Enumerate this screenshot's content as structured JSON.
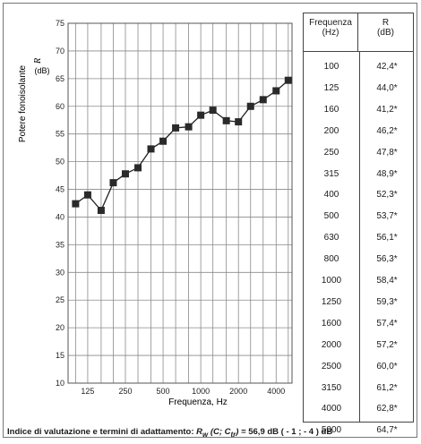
{
  "chart_data": {
    "type": "line",
    "xlabel": "Frequenza, Hz",
    "ylabel": "Potere fonoisolante",
    "ylabel_symbol": "R",
    "ylabel_unit": "(dB)",
    "x_scale": "log",
    "ylim": [
      10,
      75
    ],
    "yticks": [
      10,
      15,
      20,
      25,
      30,
      35,
      40,
      45,
      50,
      55,
      60,
      65,
      70,
      75
    ],
    "xticks": [
      125,
      250,
      500,
      1000,
      2000,
      4000
    ],
    "grid": true,
    "x": [
      100,
      125,
      160,
      200,
      250,
      315,
      400,
      500,
      630,
      800,
      1000,
      1250,
      1600,
      2000,
      2500,
      3150,
      4000,
      5000
    ],
    "values": [
      42.4,
      44.0,
      41.2,
      46.2,
      47.8,
      48.9,
      52.3,
      53.7,
      56.1,
      56.3,
      58.4,
      59.3,
      57.4,
      57.2,
      60.0,
      61.2,
      62.8,
      64.7
    ]
  },
  "table": {
    "header_freq": "Frequenza\n(Hz)",
    "header_r": "R\n(dB)",
    "rows": [
      {
        "f": "100",
        "r": "42,4*"
      },
      {
        "f": "125",
        "r": "44,0*"
      },
      {
        "f": "160",
        "r": "41,2*"
      },
      {
        "f": "200",
        "r": "46,2*"
      },
      {
        "f": "250",
        "r": "47,8*"
      },
      {
        "f": "315",
        "r": "48,9*"
      },
      {
        "f": "400",
        "r": "52,3*"
      },
      {
        "f": "500",
        "r": "53,7*"
      },
      {
        "f": "630",
        "r": "56,1*"
      },
      {
        "f": "800",
        "r": "56,3*"
      },
      {
        "f": "1000",
        "r": "58,4*"
      },
      {
        "f": "1250",
        "r": "59,3*"
      },
      {
        "f": "1600",
        "r": "57,4*"
      },
      {
        "f": "2000",
        "r": "57,2*"
      },
      {
        "f": "2500",
        "r": "60,0*"
      },
      {
        "f": "3150",
        "r": "61,2*"
      },
      {
        "f": "4000",
        "r": "62,8*"
      },
      {
        "f": "5000",
        "r": "64,7*"
      }
    ]
  },
  "footer": {
    "label": "Indice di valutazione e termini di adattamento:",
    "formula": "Rw (C; Ctr) =",
    "value": "56,9 dB",
    "terms": "( - 1 ; - 4 )",
    "unit": "dB"
  },
  "colors": {
    "grid": "#8a8a8a",
    "line": "#222222",
    "marker": "#2a2a2a",
    "border": "#444444"
  }
}
